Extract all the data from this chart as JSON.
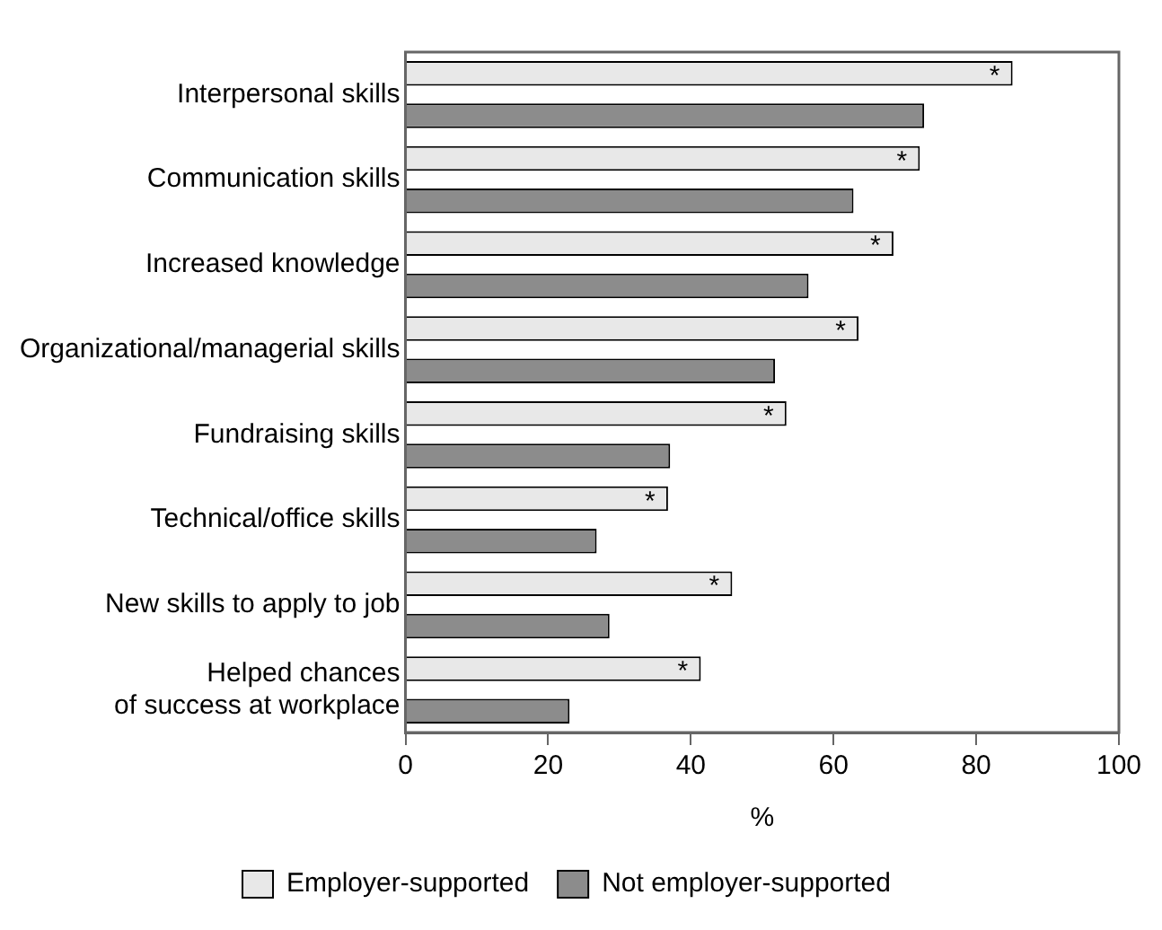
{
  "chart_data": {
    "type": "bar",
    "orientation": "horizontal",
    "xlabel": "%",
    "categories": [
      "Interpersonal skills",
      "Communication skills",
      "Increased knowledge",
      "Organizational/managerial skills",
      "Fundraising skills",
      "Technical/office skills",
      "New skills to apply to job",
      "Helped chances\nof success at workplace"
    ],
    "series": [
      {
        "name": "Employer-supported",
        "color": "#e8e8e8",
        "values": [
          85.1,
          72.1,
          68.4,
          63.5,
          53.4,
          36.8,
          45.8,
          41.4
        ]
      },
      {
        "name": "Not employer-supported",
        "color": "#8c8c8c",
        "values": [
          72.7,
          62.8,
          56.5,
          51.8,
          37.1,
          26.8,
          28.6,
          23.0
        ]
      }
    ],
    "xlim": [
      0,
      100
    ],
    "xticks": [
      0,
      20,
      40,
      60,
      80,
      100
    ],
    "grid": false,
    "legend": "bottom",
    "annotations": [
      "*",
      "*",
      "*",
      "*",
      "*",
      "*",
      "*",
      "*"
    ]
  }
}
